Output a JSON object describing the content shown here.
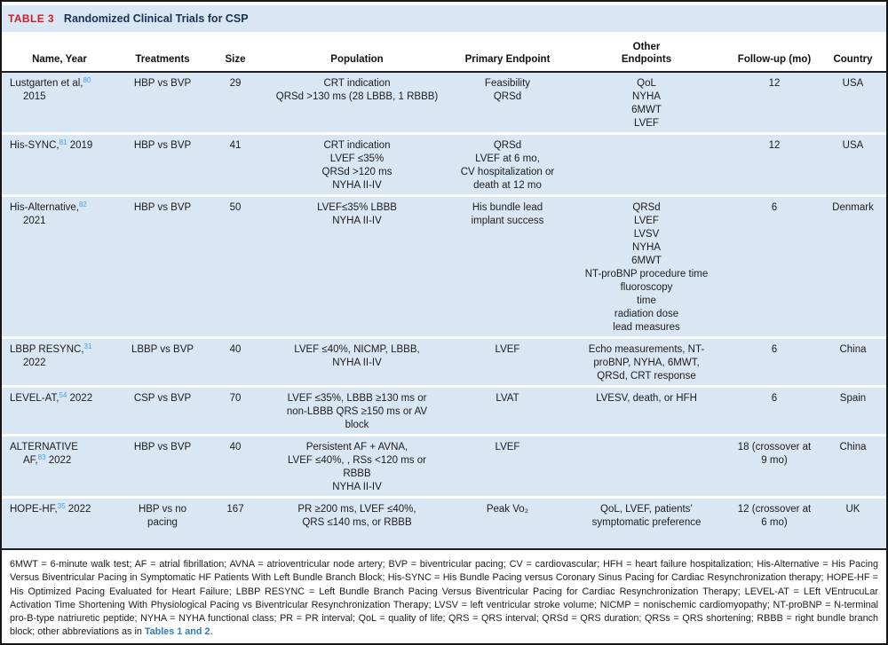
{
  "table": {
    "label": "TABLE 3",
    "title": "Randomized Clinical Trials for CSP",
    "columns": [
      "Name, Year",
      "Treatments",
      "Size",
      "Population",
      "Primary Endpoint",
      "Other\nEndpoints",
      "Follow-up (mo)",
      "Country"
    ],
    "rows": [
      {
        "name": [
          [
            {
              "t": "Lustgarten et al,"
            },
            {
              "sup": "80"
            }
          ],
          [
            {
              "t": "2015"
            }
          ]
        ],
        "treatments": "HBP vs BVP",
        "size": "29",
        "population": "CRT indication\nQRSd >130 ms (28 LBBB, 1 RBBB)",
        "primary": "Feasibility\nQRSd",
        "other": "QoL\nNYHA\n6MWT\nLVEF",
        "followup": "12",
        "country": "USA"
      },
      {
        "name": [
          [
            {
              "t": "His-SYNC,"
            },
            {
              "sup": "81"
            },
            {
              "t": " 2019"
            }
          ]
        ],
        "treatments": "HBP vs BVP",
        "size": "41",
        "population": "CRT indication\nLVEF ≤35%\nQRSd >120 ms\nNYHA II-IV",
        "primary": "QRSd\nLVEF at 6 mo,\nCV hospitalization or\ndeath at 12 mo",
        "other": "",
        "followup": "12",
        "country": "USA"
      },
      {
        "name": [
          [
            {
              "t": "His-Alternative,"
            },
            {
              "sup": "82"
            }
          ],
          [
            {
              "t": "2021"
            }
          ]
        ],
        "treatments": "HBP vs BVP",
        "size": "50",
        "population": "LVEF≤35% LBBB\nNYHA II-IV",
        "primary": "His bundle lead\nimplant success",
        "other": "QRSd\nLVEF\nLVSV\nNYHA\n6MWT\nNT-proBNP procedure time\nfluoroscopy\ntime\nradiation dose\nlead measures",
        "followup": "6",
        "country": "Denmark"
      },
      {
        "name": [
          [
            {
              "t": "LBBP RESYNC,"
            },
            {
              "sup": "31"
            }
          ],
          [
            {
              "t": "2022"
            }
          ]
        ],
        "treatments": "LBBP vs BVP",
        "size": "40",
        "population": "LVEF ≤40%, NICMP, LBBB,\nNYHA II-IV",
        "primary": "LVEF",
        "other": "Echo measurements, NT-\nproBNP, NYHA, 6MWT,\nQRSd, CRT response",
        "followup": "6",
        "country": "China"
      },
      {
        "name": [
          [
            {
              "t": "LEVEL-AT,"
            },
            {
              "sup": "54"
            },
            {
              "t": " 2022"
            }
          ]
        ],
        "treatments": "CSP vs BVP",
        "size": "70",
        "population": "LVEF ≤35%, LBBB ≥130 ms or\nnon-LBBB QRS ≥150 ms or AV\nblock",
        "primary": "LVAT",
        "other": "LVESV, death, or HFH",
        "followup": "6",
        "country": "Spain"
      },
      {
        "name": [
          [
            {
              "t": "ALTERNATIVE"
            }
          ],
          [
            {
              "t": "AF,"
            },
            {
              "sup": "83"
            },
            {
              "t": " 2022"
            }
          ]
        ],
        "treatments": "HBP vs BVP",
        "size": "40",
        "population": "Persistent AF + AVNA,\nLVEF ≤40%, , RSs <120 ms or\nRBBB\nNYHA II-IV",
        "primary": "LVEF",
        "other": "",
        "followup": "18 (crossover at\n9 mo)",
        "country": "China"
      },
      {
        "name": [
          [
            {
              "t": "HOPE-HF,"
            },
            {
              "sup": "35"
            },
            {
              "t": " 2022"
            }
          ]
        ],
        "treatments": "HBP vs no\npacing",
        "size": "167",
        "population": "PR ≥200 ms, LVEF ≤40%,\nQRS ≤140 ms, or RBBB",
        "primary": "Peak Vo₂",
        "other": "QoL, LVEF, patients’\nsymptomatic preference",
        "followup": "12 (crossover at\n6 mo)",
        "country": "UK"
      }
    ],
    "footnote": {
      "text": "6MWT = 6-minute walk test; AF = atrial fibrillation; AVNA = atrioventricular node artery; BVP = biventricular pacing; CV = cardiovascular; HFH = heart failure hospitalization; His-Alternative = His Pacing Versus Biventricular Pacing in Symptomatic HF Patients With Left Bundle Branch Block; His-SYNC = His Bundle Pacing versus Coronary Sinus Pacing for Cardiac Resynchronization therapy; HOPE-HF = His Optimized Pacing Evaluated for Heart Failure; LBBP RESYNC = Left Bundle Branch Pacing Versus Biventricular Pacing for Cardiac Resynchronization Therapy; LEVEL-AT = LEft VEntrucuLar Activation Time Shortening With Physiological Pacing vs Biventricular Resynchronization Therapy; LVSV = left ventricular stroke volume; NICMP = nonischemic cardiomyopathy; NT-proBNP = N-terminal pro-B-type natriuretic peptide; NYHA = NYHA functional class; PR = PR interval; QoL = quality of life; QRS = QRS interval; QRSd = QRS duration; QRSs = QRS shortening; RBBB = right bundle branch block; other abbreviations as in ",
      "link": "Tables 1 and 2",
      "suffix": "."
    }
  },
  "colors": {
    "row_bg": "#d9e6f3",
    "label_red": "#cb2026",
    "title_navy": "#1b3055",
    "ref_blue": "#3fa3dc",
    "link_blue": "#2e7dbd"
  }
}
